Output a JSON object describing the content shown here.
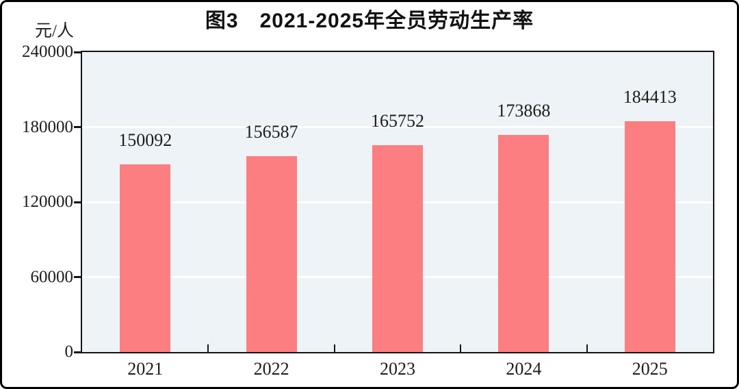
{
  "figure": {
    "title": "图3　2021-2025年全员劳动生产率",
    "unit_label": "元/人"
  },
  "chart_data": {
    "type": "bar",
    "title": "图3　2021-2025年全员劳动生产率",
    "categories": [
      "2021",
      "2022",
      "2023",
      "2024",
      "2025"
    ],
    "values": [
      150092,
      156587,
      165752,
      173868,
      184413
    ],
    "xlabel": "",
    "ylabel": "元/人",
    "ylim": [
      0,
      240000
    ],
    "yticks": [
      0,
      60000,
      120000,
      180000,
      240000
    ],
    "grid": "horizontal-white-lines",
    "legend_position": "none",
    "data_labels_shown": true,
    "colors": {
      "bar": "#fc7e80",
      "plot_background": "#edf3f6",
      "gridline": "#ffffff",
      "axis": "#141414",
      "text": "#1c1c1c",
      "outer_frame": "#000000"
    }
  }
}
